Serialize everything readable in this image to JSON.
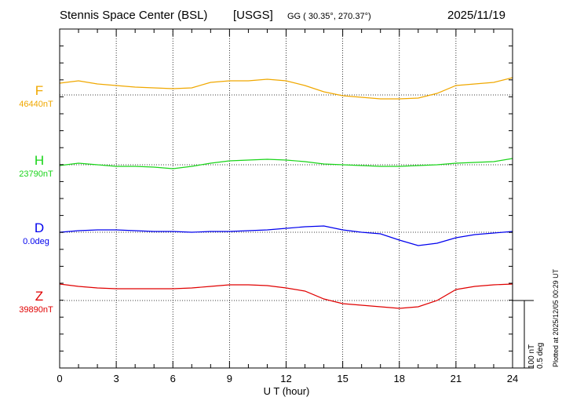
{
  "header": {
    "station": "Stennis Space Center (BSL)",
    "observatory": "[USGS]",
    "coords": "GG ( 30.35°, 270.37°)",
    "date": "2025/11/19"
  },
  "plotted_text": "Plotted at 2025/12/05 00:29 UT",
  "scale_bar": {
    "line1": "100 nT",
    "line2": "0.5 deg"
  },
  "colors": {
    "F": "#f0a800",
    "H": "#19d419",
    "D": "#0000ee",
    "Z": "#e00000"
  },
  "chart_data": {
    "type": "line",
    "title": "Stennis Space Center (BSL)  [USGS]",
    "xlabel": "U T (hour)",
    "xlim": [
      0,
      24
    ],
    "xticks": [
      0,
      3,
      6,
      9,
      12,
      15,
      18,
      21,
      24
    ],
    "grid": true,
    "series": [
      {
        "name": "F",
        "baseline_label": "46440nT",
        "x": [
          0,
          1,
          2,
          3,
          4,
          5,
          6,
          7,
          8,
          9,
          10,
          11,
          12,
          13,
          14,
          15,
          16,
          17,
          18,
          19,
          20,
          21,
          22,
          23,
          24
        ],
        "values": [
          46447.5,
          46449.0,
          46447.0,
          46446.0,
          46445.0,
          46444.5,
          46444.0,
          46444.5,
          46448.0,
          46449.0,
          46449.0,
          46450.0,
          46449.0,
          46446.0,
          46442.0,
          46439.5,
          46438.5,
          46437.5,
          46437.5,
          46438.0,
          46441.0,
          46446.0,
          46447.0,
          46448.0,
          46451.0
        ]
      },
      {
        "name": "H",
        "baseline_label": "23790nT",
        "x": [
          0,
          1,
          2,
          3,
          4,
          5,
          6,
          7,
          8,
          9,
          10,
          11,
          12,
          13,
          14,
          15,
          16,
          17,
          18,
          19,
          20,
          21,
          22,
          23,
          24
        ],
        "values": [
          23789.5,
          23791.0,
          23790.0,
          23789.0,
          23789.0,
          23788.5,
          23787.5,
          23789.0,
          23791.0,
          23792.5,
          23793.0,
          23793.5,
          23793.0,
          23792.0,
          23790.5,
          23790.0,
          23789.5,
          23789.0,
          23789.0,
          23789.5,
          23790.0,
          23791.0,
          23791.5,
          23792.0,
          23794.0
        ]
      },
      {
        "name": "D",
        "baseline_label": "0.0deg",
        "x": [
          0,
          1,
          2,
          3,
          4,
          5,
          6,
          7,
          8,
          9,
          10,
          11,
          12,
          13,
          14,
          15,
          16,
          17,
          18,
          19,
          20,
          21,
          22,
          23,
          24
        ],
        "values": [
          0.0,
          0.005,
          0.0075,
          0.0075,
          0.005,
          0.0025,
          0.0025,
          0.0,
          0.0025,
          0.0025,
          0.005,
          0.0075,
          0.0125,
          0.0175,
          0.02,
          0.0075,
          0.0,
          -0.005,
          -0.025,
          -0.0425,
          -0.035,
          -0.0175,
          -0.0075,
          -0.0025,
          0.0025
        ]
      },
      {
        "name": "Z",
        "baseline_label": "39890nT",
        "x": [
          0,
          1,
          2,
          3,
          4,
          5,
          6,
          7,
          8,
          9,
          10,
          11,
          12,
          13,
          14,
          15,
          16,
          17,
          18,
          19,
          20,
          21,
          22,
          23,
          24
        ],
        "values": [
          39900.5,
          39899.0,
          39898.0,
          39897.5,
          39897.5,
          39897.5,
          39897.5,
          39898.0,
          39899.0,
          39900.0,
          39900.0,
          39899.5,
          39898.0,
          39896.0,
          39891.0,
          39888.0,
          39887.0,
          39886.0,
          39885.0,
          39886.0,
          39890.0,
          39897.0,
          39899.0,
          39900.0,
          39900.5
        ]
      }
    ]
  }
}
